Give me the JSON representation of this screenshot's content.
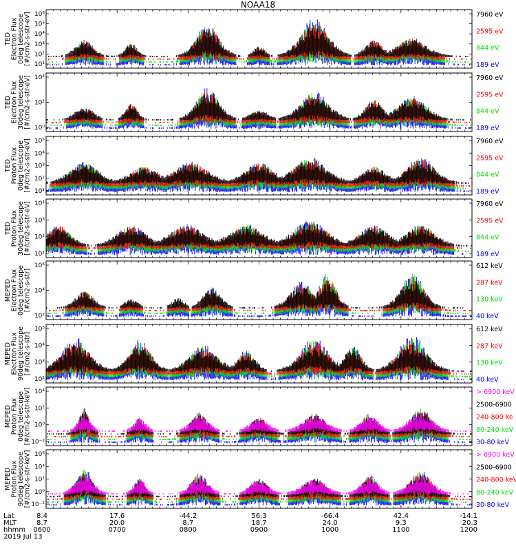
{
  "title": "NOAA18",
  "colors": {
    "blue": "#0000ff",
    "red": "#ff0000",
    "green": "#00e000",
    "black": "#000000",
    "magenta": "#ff00ff"
  },
  "chart_data": [
    {
      "type": "scatter",
      "ylabel": [
        "TED",
        "Electron Flux",
        "0deg telescope",
        "[#/cm2-s-str-eV]"
      ],
      "yticks": [
        "10¹",
        "10²",
        "10³",
        "10⁴",
        "10⁵",
        "10⁶"
      ],
      "legend": [
        {
          "label": "7960 eV",
          "color": "black"
        },
        {
          "label": "2595 eV",
          "color": "red"
        },
        {
          "label": "844 eV",
          "color": "green"
        },
        {
          "label": "189 eV",
          "color": "blue"
        }
      ]
    },
    {
      "type": "scatter",
      "ylabel": [
        "TED",
        "Electron Flux",
        "30deg telescope",
        "[#/cm2-s-str-eV]"
      ],
      "yticks": [
        "10⁰",
        "10²",
        "10⁴"
      ],
      "legend": [
        {
          "label": "7960 eV",
          "color": "black"
        },
        {
          "label": "2595 eV",
          "color": "red"
        },
        {
          "label": "844 eV",
          "color": "green"
        },
        {
          "label": "189 eV",
          "color": "blue"
        }
      ]
    },
    {
      "type": "scatter",
      "ylabel": [
        "TED",
        "Proton Flux",
        "0deg telescope",
        "[#/cm2-s-str-eV]"
      ],
      "yticks": [
        "10¹",
        "10²",
        "10³",
        "10⁴",
        "10⁵"
      ],
      "legend": [
        {
          "label": "7960 eV",
          "color": "black"
        },
        {
          "label": "2595 eV",
          "color": "red"
        },
        {
          "label": "844 eV",
          "color": "green"
        },
        {
          "label": "189 eV",
          "color": "blue"
        }
      ]
    },
    {
      "type": "scatter",
      "ylabel": [
        "TED",
        "Proton Flux",
        "30deg telescope",
        "[#/cm2-s-str-eV]"
      ],
      "yticks": [
        "10¹",
        "10²",
        "10³",
        "10⁴"
      ],
      "legend": [
        {
          "label": "7960 eV",
          "color": "black"
        },
        {
          "label": "2595 eV",
          "color": "red"
        },
        {
          "label": "844 eV",
          "color": "green"
        },
        {
          "label": "189 eV",
          "color": "blue"
        }
      ]
    },
    {
      "type": "scatter",
      "ylabel": [
        "MEPED",
        "Electron Flux",
        "0deg telescope",
        "[#/cm2-s-str]"
      ],
      "yticks": [
        "10²",
        "10⁴",
        "10⁶"
      ],
      "legend": [
        {
          "label": "612 keV",
          "color": "black"
        },
        {
          "label": "287 keV",
          "color": "red"
        },
        {
          "label": "130 keV",
          "color": "green"
        },
        {
          "label": "40 keV",
          "color": "blue"
        }
      ]
    },
    {
      "type": "scatter",
      "ylabel": [
        "MEPED",
        "Electron Flux",
        "90deg telescope",
        "[#/cm2-s-str]"
      ],
      "yticks": [
        "10²",
        "10³",
        "10⁴",
        "10⁵"
      ],
      "legend": [
        {
          "label": "612 keV",
          "color": "black"
        },
        {
          "label": "287 keV",
          "color": "red"
        },
        {
          "label": "130 keV",
          "color": "green"
        },
        {
          "label": "40 keV",
          "color": "blue"
        }
      ]
    },
    {
      "type": "scatter",
      "ylabel": [
        "MEPED",
        "Proton Flux",
        "0deg telescope",
        "[#/cm2-s-str-keV]"
      ],
      "yticks": [
        "10⁻²",
        "10⁰",
        "10²",
        "10⁴"
      ],
      "legend": [
        {
          "label": "> 6900 keV",
          "color": "magenta"
        },
        {
          "label": "2500-6900",
          "color": "black"
        },
        {
          "label": "240-800 ke",
          "color": "red"
        },
        {
          "label": "80-240 keV",
          "color": "green"
        },
        {
          "label": "30-80 keV",
          "color": "blue"
        }
      ]
    },
    {
      "type": "scatter",
      "ylabel": [
        "MEPED",
        "Proton Flux",
        "90deg telescope",
        "[#/cm2-s-str-keV]"
      ],
      "yticks": [
        "10⁻²",
        "10⁰",
        "10²",
        "10⁴",
        "10⁶"
      ],
      "legend": [
        {
          "label": "> 6900 keV",
          "color": "magenta"
        },
        {
          "label": "2500-6900",
          "color": "black"
        },
        {
          "label": "240-800 keV",
          "color": "red"
        },
        {
          "label": "80-240 keV",
          "color": "green"
        },
        {
          "label": "30-80 keV",
          "color": "blue"
        }
      ]
    }
  ],
  "footer": {
    "row_labels": [
      "Lat",
      "MLT",
      "hhmm"
    ],
    "date": "2019 Jul 13",
    "ticks": [
      {
        "lat": "8.4",
        "mlt": "8.7",
        "hhmm": "0600"
      },
      {
        "lat": "17.6",
        "mlt": "20.0",
        "hhmm": "0700"
      },
      {
        "lat": "-44.2",
        "mlt": "8.7",
        "hhmm": "0800"
      },
      {
        "lat": "56.3",
        "mlt": "18.7",
        "hhmm": "0900"
      },
      {
        "lat": "-66.4",
        "mlt": "24.0",
        "hhmm": "1000"
      },
      {
        "lat": "42.4",
        "mlt": "9.3",
        "hhmm": "1100"
      },
      {
        "lat": "-14.1",
        "mlt": "20.3",
        "hhmm": "1200"
      }
    ]
  }
}
